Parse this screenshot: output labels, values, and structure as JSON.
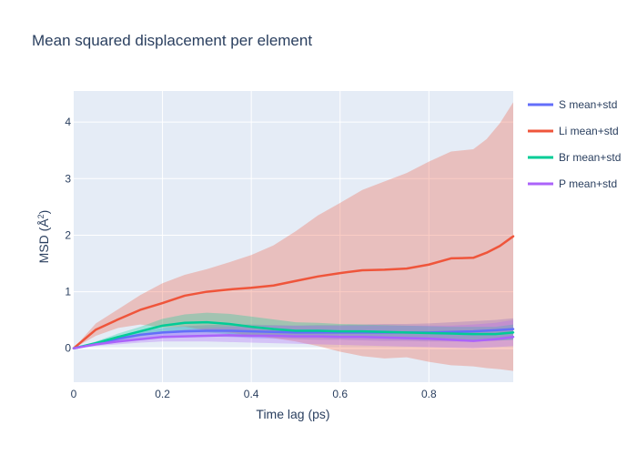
{
  "chart_data": {
    "type": "line",
    "title": "Mean squared displacement per element",
    "xlabel": "Time lag (ps)",
    "ylabel_main": "MSD (Å",
    "ylabel_sup": "2",
    "ylabel_close": ")",
    "xlim": [
      0,
      0.99
    ],
    "ylim": [
      -0.6,
      4.55
    ],
    "xticks": [
      {
        "value": 0,
        "label": "0"
      },
      {
        "value": 0.2,
        "label": "0.2"
      },
      {
        "value": 0.4,
        "label": "0.4"
      },
      {
        "value": 0.6,
        "label": "0.6"
      },
      {
        "value": 0.8,
        "label": "0.8"
      }
    ],
    "yticks": [
      {
        "value": 0,
        "label": "0"
      },
      {
        "value": 1,
        "label": "1"
      },
      {
        "value": 2,
        "label": "2"
      },
      {
        "value": 3,
        "label": "3"
      },
      {
        "value": 4,
        "label": "4"
      }
    ],
    "grid": true,
    "legend_position": "right",
    "series": [
      {
        "name": "S mean+std",
        "color": "#636efa",
        "x": [
          0,
          0.05,
          0.1,
          0.15,
          0.2,
          0.25,
          0.3,
          0.35,
          0.4,
          0.45,
          0.5,
          0.55,
          0.6,
          0.65,
          0.7,
          0.75,
          0.8,
          0.85,
          0.9,
          0.95,
          0.99
        ],
        "mean": [
          0,
          0.08,
          0.17,
          0.24,
          0.28,
          0.3,
          0.31,
          0.31,
          0.3,
          0.29,
          0.28,
          0.28,
          0.28,
          0.28,
          0.28,
          0.28,
          0.28,
          0.29,
          0.3,
          0.32,
          0.34
        ],
        "lower": [
          0,
          0.05,
          0.12,
          0.18,
          0.2,
          0.21,
          0.21,
          0.2,
          0.18,
          0.17,
          0.16,
          0.15,
          0.15,
          0.14,
          0.13,
          0.13,
          0.12,
          0.12,
          0.12,
          0.13,
          0.15
        ],
        "upper": [
          0,
          0.11,
          0.22,
          0.3,
          0.36,
          0.39,
          0.41,
          0.42,
          0.42,
          0.41,
          0.4,
          0.41,
          0.41,
          0.42,
          0.43,
          0.43,
          0.44,
          0.46,
          0.48,
          0.5,
          0.53
        ]
      },
      {
        "name": "Li mean+std",
        "color": "#ef553b",
        "x": [
          0,
          0.05,
          0.1,
          0.15,
          0.2,
          0.25,
          0.3,
          0.35,
          0.4,
          0.45,
          0.5,
          0.55,
          0.6,
          0.65,
          0.7,
          0.75,
          0.8,
          0.85,
          0.9,
          0.93,
          0.96,
          0.99
        ],
        "mean": [
          0,
          0.33,
          0.51,
          0.68,
          0.8,
          0.93,
          1.0,
          1.04,
          1.07,
          1.11,
          1.19,
          1.27,
          1.33,
          1.38,
          1.39,
          1.41,
          1.48,
          1.59,
          1.6,
          1.69,
          1.81,
          1.98
        ],
        "lower": [
          0,
          0.22,
          0.36,
          0.42,
          0.37,
          0.38,
          0.32,
          0.28,
          0.22,
          0.18,
          0.12,
          0.04,
          -0.06,
          -0.14,
          -0.18,
          -0.16,
          -0.24,
          -0.3,
          -0.32,
          -0.35,
          -0.37,
          -0.4
        ],
        "upper": [
          0,
          0.44,
          0.69,
          0.94,
          1.15,
          1.3,
          1.4,
          1.52,
          1.65,
          1.82,
          2.07,
          2.35,
          2.57,
          2.8,
          2.95,
          3.1,
          3.3,
          3.48,
          3.52,
          3.7,
          3.98,
          4.35
        ]
      },
      {
        "name": "Br mean+std",
        "color": "#00cc96",
        "x": [
          0,
          0.05,
          0.1,
          0.15,
          0.2,
          0.25,
          0.3,
          0.35,
          0.4,
          0.45,
          0.5,
          0.55,
          0.6,
          0.65,
          0.7,
          0.75,
          0.8,
          0.85,
          0.9,
          0.95,
          0.99
        ],
        "mean": [
          0,
          0.09,
          0.2,
          0.3,
          0.4,
          0.45,
          0.46,
          0.43,
          0.38,
          0.34,
          0.31,
          0.31,
          0.3,
          0.3,
          0.29,
          0.28,
          0.27,
          0.26,
          0.25,
          0.25,
          0.28
        ],
        "lower": [
          0,
          0.06,
          0.14,
          0.21,
          0.27,
          0.28,
          0.28,
          0.25,
          0.22,
          0.2,
          0.19,
          0.19,
          0.18,
          0.18,
          0.17,
          0.16,
          0.15,
          0.15,
          0.14,
          0.14,
          0.15
        ],
        "upper": [
          0,
          0.12,
          0.26,
          0.38,
          0.52,
          0.6,
          0.63,
          0.61,
          0.56,
          0.51,
          0.46,
          0.45,
          0.43,
          0.42,
          0.41,
          0.4,
          0.39,
          0.38,
          0.38,
          0.38,
          0.42
        ]
      },
      {
        "name": "P mean+std",
        "color": "#ab63fa",
        "x": [
          0,
          0.05,
          0.1,
          0.15,
          0.2,
          0.25,
          0.3,
          0.35,
          0.4,
          0.45,
          0.5,
          0.55,
          0.6,
          0.65,
          0.7,
          0.75,
          0.8,
          0.85,
          0.9,
          0.95,
          0.99
        ],
        "mean": [
          0,
          0.07,
          0.12,
          0.16,
          0.2,
          0.21,
          0.22,
          0.23,
          0.22,
          0.22,
          0.21,
          0.21,
          0.2,
          0.2,
          0.19,
          0.18,
          0.17,
          0.15,
          0.13,
          0.16,
          0.2
        ],
        "lower": [
          0,
          0.04,
          0.07,
          0.1,
          0.12,
          0.12,
          0.12,
          0.11,
          0.1,
          0.09,
          0.08,
          0.07,
          0.06,
          0.05,
          0.04,
          0.03,
          0.02,
          0.01,
          0.0,
          0.02,
          0.04
        ],
        "upper": [
          0,
          0.1,
          0.17,
          0.24,
          0.3,
          0.33,
          0.36,
          0.38,
          0.39,
          0.4,
          0.4,
          0.4,
          0.4,
          0.4,
          0.4,
          0.4,
          0.4,
          0.4,
          0.42,
          0.45,
          0.5
        ]
      }
    ]
  }
}
